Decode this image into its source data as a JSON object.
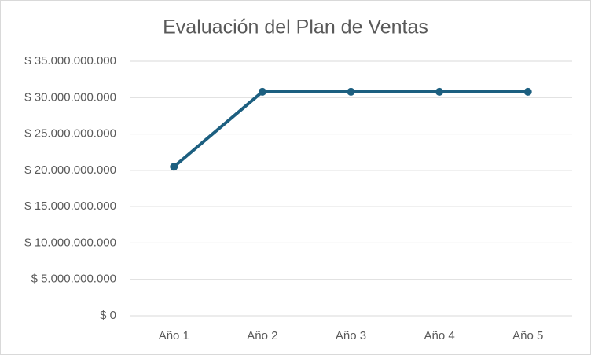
{
  "chart_data": {
    "type": "line",
    "title": "Evaluación del Plan de Ventas",
    "categories": [
      "Año 1",
      "Año 2",
      "Año 3",
      "Año 4",
      "Año 5"
    ],
    "values": [
      20500000000,
      30800000000,
      30800000000,
      30800000000,
      30800000000
    ],
    "color": "#1c5f80",
    "ylim": [
      0,
      35000000000
    ],
    "yticks": [
      {
        "value": 0,
        "label": "$ 0"
      },
      {
        "value": 5000000000,
        "label": "$ 5.000.000.000"
      },
      {
        "value": 10000000000,
        "label": "$ 10.000.000.000"
      },
      {
        "value": 15000000000,
        "label": "$ 15.000.000.000"
      },
      {
        "value": 20000000000,
        "label": "$ 20.000.000.000"
      },
      {
        "value": 25000000000,
        "label": "$ 25.000.000.000"
      },
      {
        "value": 30000000000,
        "label": "$ 30.000.000.000"
      },
      {
        "value": 35000000000,
        "label": "$ 35.000.000.000"
      }
    ],
    "grid": true
  }
}
